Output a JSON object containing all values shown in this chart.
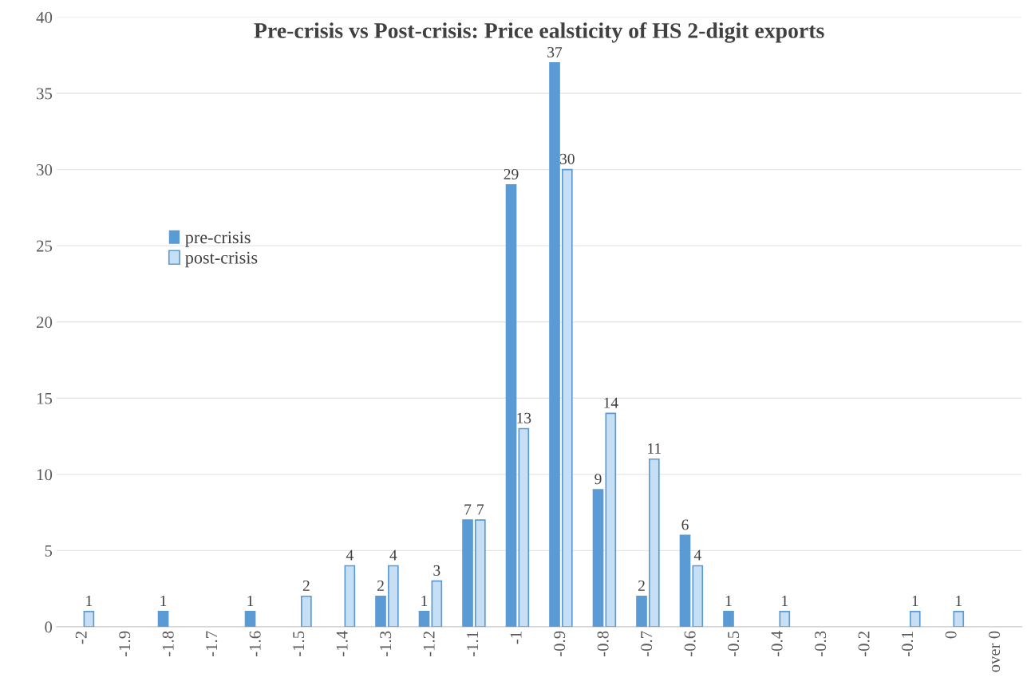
{
  "chart_data": {
    "type": "bar",
    "title": "Pre-crisis vs Post-crisis: Price ealsticity of HS 2-digit exports",
    "categories": [
      "-2",
      "-1.9",
      "-1.8",
      "-1.7",
      "-1.6",
      "-1.5",
      "-1.4",
      "-1.3",
      "-1.2",
      "-1.1",
      "-1",
      "-0.9",
      "-0.8",
      "-0.7",
      "-0.6",
      "-0.5",
      "-0.4",
      "-0.3",
      "-0.2",
      "-0.1",
      "0",
      "over 0"
    ],
    "series": [
      {
        "name": "pre-crisis",
        "color": "#5b9bd5",
        "values": [
          0,
          0,
          1,
          0,
          1,
          0,
          0,
          2,
          1,
          7,
          29,
          37,
          9,
          2,
          6,
          1,
          0,
          0,
          0,
          0,
          0,
          0
        ],
        "value_labels": [
          null,
          null,
          "1",
          null,
          "1",
          null,
          null,
          "2",
          "1",
          "7",
          "29",
          "37",
          "9",
          "2",
          "6",
          "1",
          null,
          null,
          null,
          null,
          null,
          null
        ]
      },
      {
        "name": "post-crisis",
        "color": "#c6dff4",
        "values": [
          1,
          0,
          0,
          0,
          0,
          2,
          4,
          4,
          3,
          7,
          13,
          30,
          14,
          11,
          4,
          0,
          1,
          0,
          0,
          1,
          1,
          0
        ],
        "value_labels": [
          "1",
          null,
          null,
          null,
          null,
          "2",
          "4",
          "4",
          "3",
          "7",
          "13",
          "30",
          "14",
          "11",
          "4",
          null,
          "1",
          null,
          null,
          "1",
          "1",
          null
        ]
      }
    ],
    "ylim": [
      0,
      40
    ],
    "yticks": [
      0,
      5,
      10,
      15,
      20,
      25,
      30,
      35,
      40
    ],
    "grid": "y",
    "legend": "left"
  }
}
